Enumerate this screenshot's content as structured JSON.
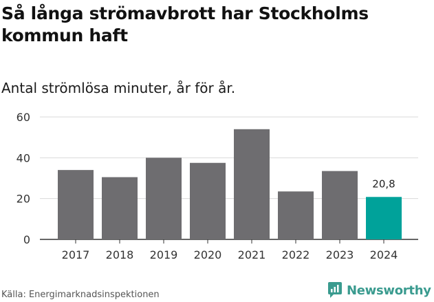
{
  "chart_data": {
    "type": "bar",
    "title": "Så långa strömavbrott har Stockholms kommun haft",
    "subtitle": "Antal strömlösa minuter, år för år.",
    "categories": [
      "2017",
      "2018",
      "2019",
      "2020",
      "2021",
      "2022",
      "2023",
      "2024"
    ],
    "values": [
      34,
      30.5,
      40,
      37.5,
      54,
      23.5,
      33.5,
      20.8
    ],
    "highlight_index": 7,
    "data_labels": [
      {
        "index": 7,
        "text": "20,8"
      }
    ],
    "yticks": [
      "0",
      "20",
      "40",
      "60"
    ],
    "ylim": [
      0,
      60
    ],
    "xlabel": "",
    "ylabel": "",
    "grid": true,
    "colors": {
      "bar": "#6e6d70",
      "highlight": "#00a29a",
      "grid": "#d9d9d9",
      "axis": "#333333"
    }
  },
  "source": "Källa: Energimarknadsinspektionen",
  "brand": {
    "name": "Newsworthy",
    "icon": "newsworthy-logo-icon",
    "color": "#3a9b8f"
  }
}
